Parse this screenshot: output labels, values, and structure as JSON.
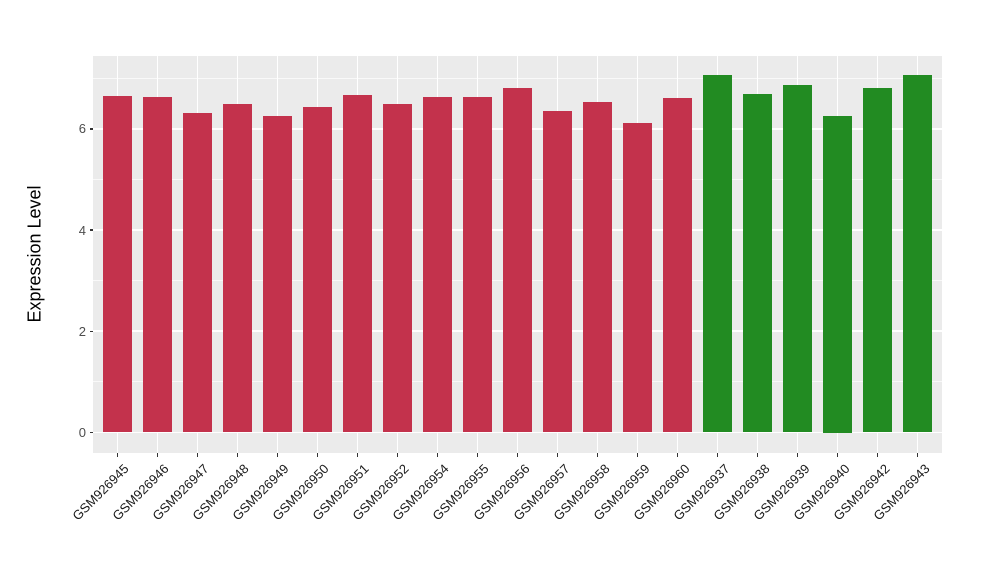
{
  "chart_data": {
    "type": "bar",
    "title": "",
    "xlabel": "",
    "ylabel": "Expression Level",
    "yticks": [
      0,
      2,
      4,
      6
    ],
    "yticks_minor": [
      1,
      3,
      5,
      7
    ],
    "ylim": [
      -0.4,
      7.45
    ],
    "grid": true,
    "legend_position": "none",
    "panel_bg": "#EBEBEB",
    "gridline_color": "#FFFFFF",
    "group_colors": {
      "left-group-red": "#C3324C",
      "right-group-green": "#228B22"
    },
    "categories": [
      "GSM926945",
      "GSM926946",
      "GSM926947",
      "GSM926948",
      "GSM926949",
      "GSM926950",
      "GSM926951",
      "GSM926952",
      "GSM926954",
      "GSM926955",
      "GSM926956",
      "GSM926957",
      "GSM926958",
      "GSM926959",
      "GSM926960",
      "GSM926937",
      "GSM926938",
      "GSM926939",
      "GSM926940",
      "GSM926942",
      "GSM926943"
    ],
    "values": [
      6.65,
      6.63,
      6.31,
      6.5,
      6.26,
      6.43,
      6.67,
      6.5,
      6.64,
      6.64,
      6.8,
      6.36,
      6.53,
      6.11,
      6.61,
      7.06,
      6.69,
      6.86,
      6.25,
      6.8,
      7.06
    ],
    "bar_colors": [
      "#C3324C",
      "#C3324C",
      "#C3324C",
      "#C3324C",
      "#C3324C",
      "#C3324C",
      "#C3324C",
      "#C3324C",
      "#C3324C",
      "#C3324C",
      "#C3324C",
      "#C3324C",
      "#C3324C",
      "#C3324C",
      "#C3324C",
      "#228B22",
      "#228B22",
      "#228B22",
      "#228B22",
      "#228B22",
      "#228B22"
    ]
  }
}
